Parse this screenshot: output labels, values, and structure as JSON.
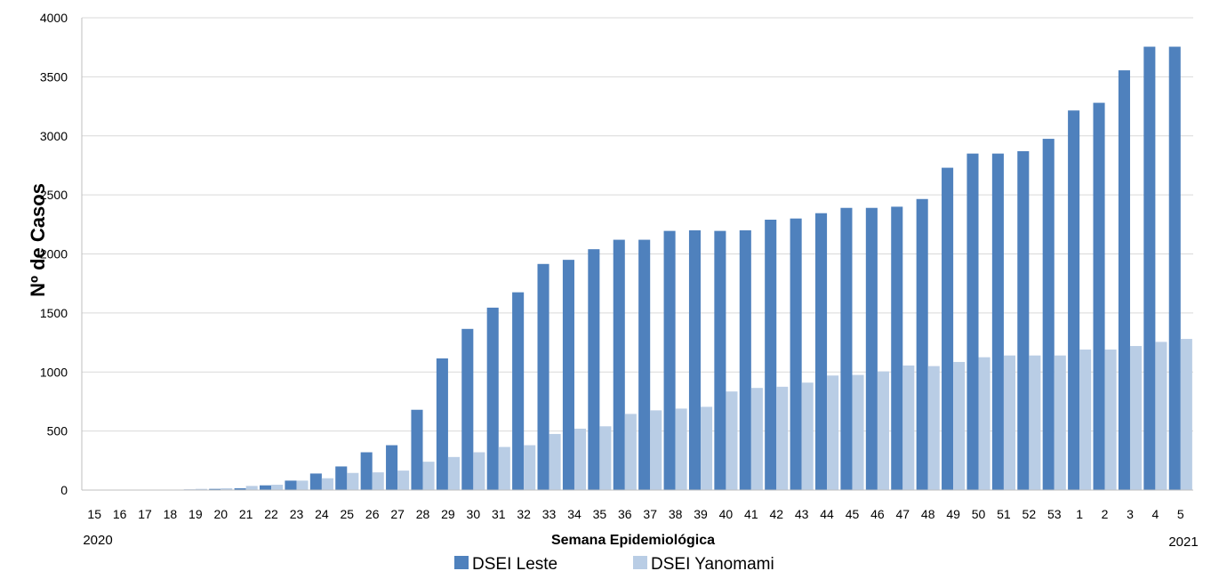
{
  "chart_data": {
    "type": "bar",
    "categories": [
      "15",
      "16",
      "17",
      "18",
      "19",
      "20",
      "21",
      "22",
      "23",
      "24",
      "25",
      "26",
      "27",
      "28",
      "29",
      "30",
      "31",
      "32",
      "33",
      "34",
      "35",
      "36",
      "37",
      "38",
      "39",
      "40",
      "41",
      "42",
      "43",
      "44",
      "45",
      "46",
      "47",
      "48",
      "49",
      "50",
      "51",
      "52",
      "53",
      "1",
      "2",
      "3",
      "4",
      "5"
    ],
    "series": [
      {
        "name": "DSEI Leste",
        "color": "#4f81bd",
        "values": [
          0,
          0,
          0,
          0,
          5,
          10,
          15,
          40,
          80,
          140,
          200,
          320,
          380,
          680,
          1115,
          1365,
          1545,
          1675,
          1915,
          1950,
          2040,
          2120,
          2120,
          2195,
          2200,
          2195,
          2200,
          2290,
          2300,
          2345,
          2390,
          2390,
          2400,
          2465,
          2730,
          2850,
          2850,
          2870,
          2975,
          3215,
          3280,
          3555,
          3755,
          3755
        ]
      },
      {
        "name": "DSEI Yanomami",
        "color": "#b9cde5",
        "values": [
          0,
          0,
          0,
          0,
          10,
          15,
          35,
          45,
          80,
          100,
          145,
          150,
          165,
          240,
          280,
          320,
          365,
          380,
          475,
          520,
          540,
          645,
          675,
          690,
          705,
          835,
          865,
          875,
          910,
          970,
          975,
          1005,
          1055,
          1050,
          1085,
          1125,
          1140,
          1140,
          1140,
          1190,
          1190,
          1220,
          1255,
          1280
        ]
      }
    ],
    "xlabel": "Semana Epidemiológica",
    "ylabel": "Nº de Casos",
    "year_start_label": "2020",
    "year_end_label": "2021",
    "ylim": [
      0,
      4000
    ],
    "yticks": [
      0,
      500,
      1000,
      1500,
      2000,
      2500,
      3000,
      3500,
      4000
    ],
    "grid": true,
    "legend_position": "bottom"
  }
}
